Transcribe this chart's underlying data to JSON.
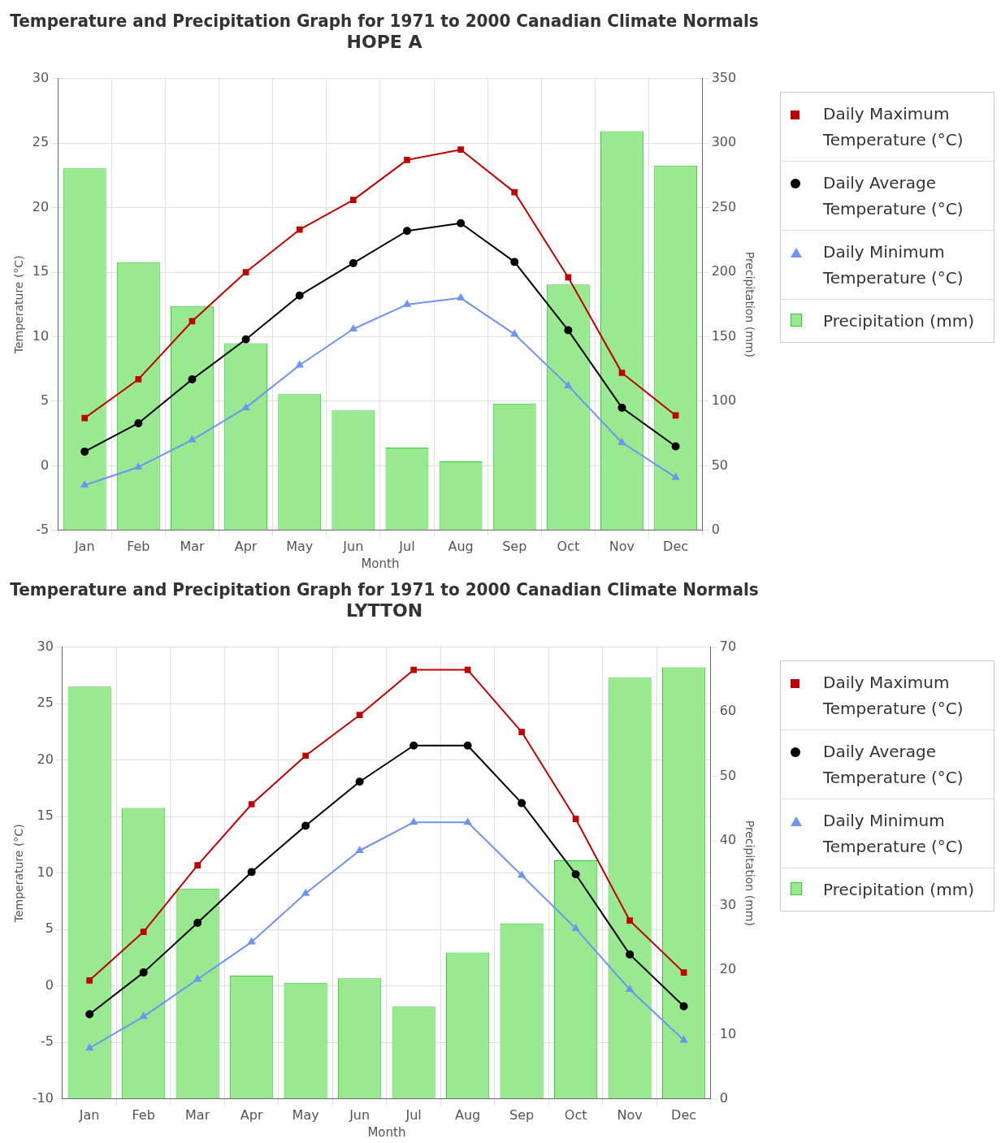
{
  "chart_data": [
    {
      "type": "bar",
      "title": "Temperature and Precipitation Graph for 1971 to 2000 Canadian Climate Normals",
      "subtitle": "HOPE A",
      "xlabel": "Month",
      "ylabel": "Temperature (°C)",
      "y2label": "Precipitation (mm)",
      "categories": [
        "Jan",
        "Feb",
        "Mar",
        "Apr",
        "May",
        "Jun",
        "Jul",
        "Aug",
        "Sep",
        "Oct",
        "Nov",
        "Dec"
      ],
      "ylim": [
        -5,
        30
      ],
      "yticks": [
        -5,
        0,
        5,
        10,
        15,
        20,
        25,
        30
      ],
      "y2lim": [
        0,
        350
      ],
      "y2ticks": [
        0,
        50,
        100,
        150,
        200,
        250,
        300,
        350
      ],
      "grid": true,
      "legend": "right",
      "series": [
        {
          "name": "Daily Maximum Temperature (°C)",
          "type": "line",
          "marker": "square",
          "color": "#c00000",
          "values": [
            3.7,
            6.7,
            11.2,
            15.0,
            18.3,
            20.6,
            23.7,
            24.5,
            21.2,
            14.6,
            7.2,
            3.9
          ]
        },
        {
          "name": "Daily Average Temperature (°C)",
          "type": "line",
          "marker": "circle",
          "color": "#000000",
          "values": [
            1.1,
            3.3,
            6.7,
            9.8,
            13.2,
            15.7,
            18.2,
            18.8,
            15.8,
            10.5,
            4.5,
            1.5
          ]
        },
        {
          "name": "Daily Minimum Temperature (°C)",
          "type": "line",
          "marker": "triangle",
          "color": "#6f93f5",
          "values": [
            -1.5,
            -0.1,
            2.0,
            4.5,
            7.8,
            10.6,
            12.5,
            13.0,
            10.2,
            6.2,
            1.8,
            -0.9
          ]
        },
        {
          "name": "Precipitation (mm)",
          "axis": "y2",
          "color": "#98e990",
          "values": [
            280.5,
            207.7,
            173.7,
            145.0,
            105.5,
            92.9,
            64.1,
            53.4,
            98.2,
            190.4,
            309.3,
            282.6
          ]
        }
      ]
    },
    {
      "type": "bar",
      "title": "Temperature and Precipitation Graph for 1971 to 2000 Canadian Climate Normals",
      "subtitle": "LYTTON",
      "xlabel": "Month",
      "ylabel": "Temperature (°C)",
      "y2label": "Precipitation (mm)",
      "categories": [
        "Jan",
        "Feb",
        "Mar",
        "Apr",
        "May",
        "Jun",
        "Jul",
        "Aug",
        "Sep",
        "Oct",
        "Nov",
        "Dec"
      ],
      "ylim": [
        -10,
        30
      ],
      "yticks": [
        -10,
        -5,
        0,
        5,
        10,
        15,
        20,
        25,
        30
      ],
      "y2lim": [
        0,
        70
      ],
      "y2ticks": [
        0,
        10,
        20,
        30,
        40,
        50,
        60,
        70
      ],
      "grid": true,
      "legend": "right",
      "series": [
        {
          "name": "Daily Maximum Temperature (°C)",
          "type": "line",
          "marker": "square",
          "color": "#c00000",
          "values": [
            0.5,
            4.8,
            10.7,
            16.1,
            20.4,
            24.0,
            28.0,
            28.0,
            22.5,
            14.8,
            5.8,
            1.2
          ]
        },
        {
          "name": "Daily Average Temperature (°C)",
          "type": "line",
          "marker": "circle",
          "color": "#000000",
          "values": [
            -2.5,
            1.2,
            5.6,
            10.1,
            14.2,
            18.1,
            21.3,
            21.3,
            16.2,
            9.9,
            2.8,
            -1.8
          ]
        },
        {
          "name": "Daily Minimum Temperature (°C)",
          "type": "line",
          "marker": "triangle",
          "color": "#6f93f5",
          "values": [
            -5.5,
            -2.7,
            0.6,
            3.9,
            8.2,
            12.0,
            14.5,
            14.5,
            9.8,
            5.1,
            -0.3,
            -4.8
          ]
        },
        {
          "name": "Precipitation (mm)",
          "axis": "y2",
          "color": "#98e990",
          "values": [
            63.9,
            45.1,
            32.6,
            19.1,
            18.0,
            18.7,
            14.3,
            22.7,
            27.2,
            37.0,
            65.3,
            66.9
          ]
        }
      ]
    }
  ]
}
